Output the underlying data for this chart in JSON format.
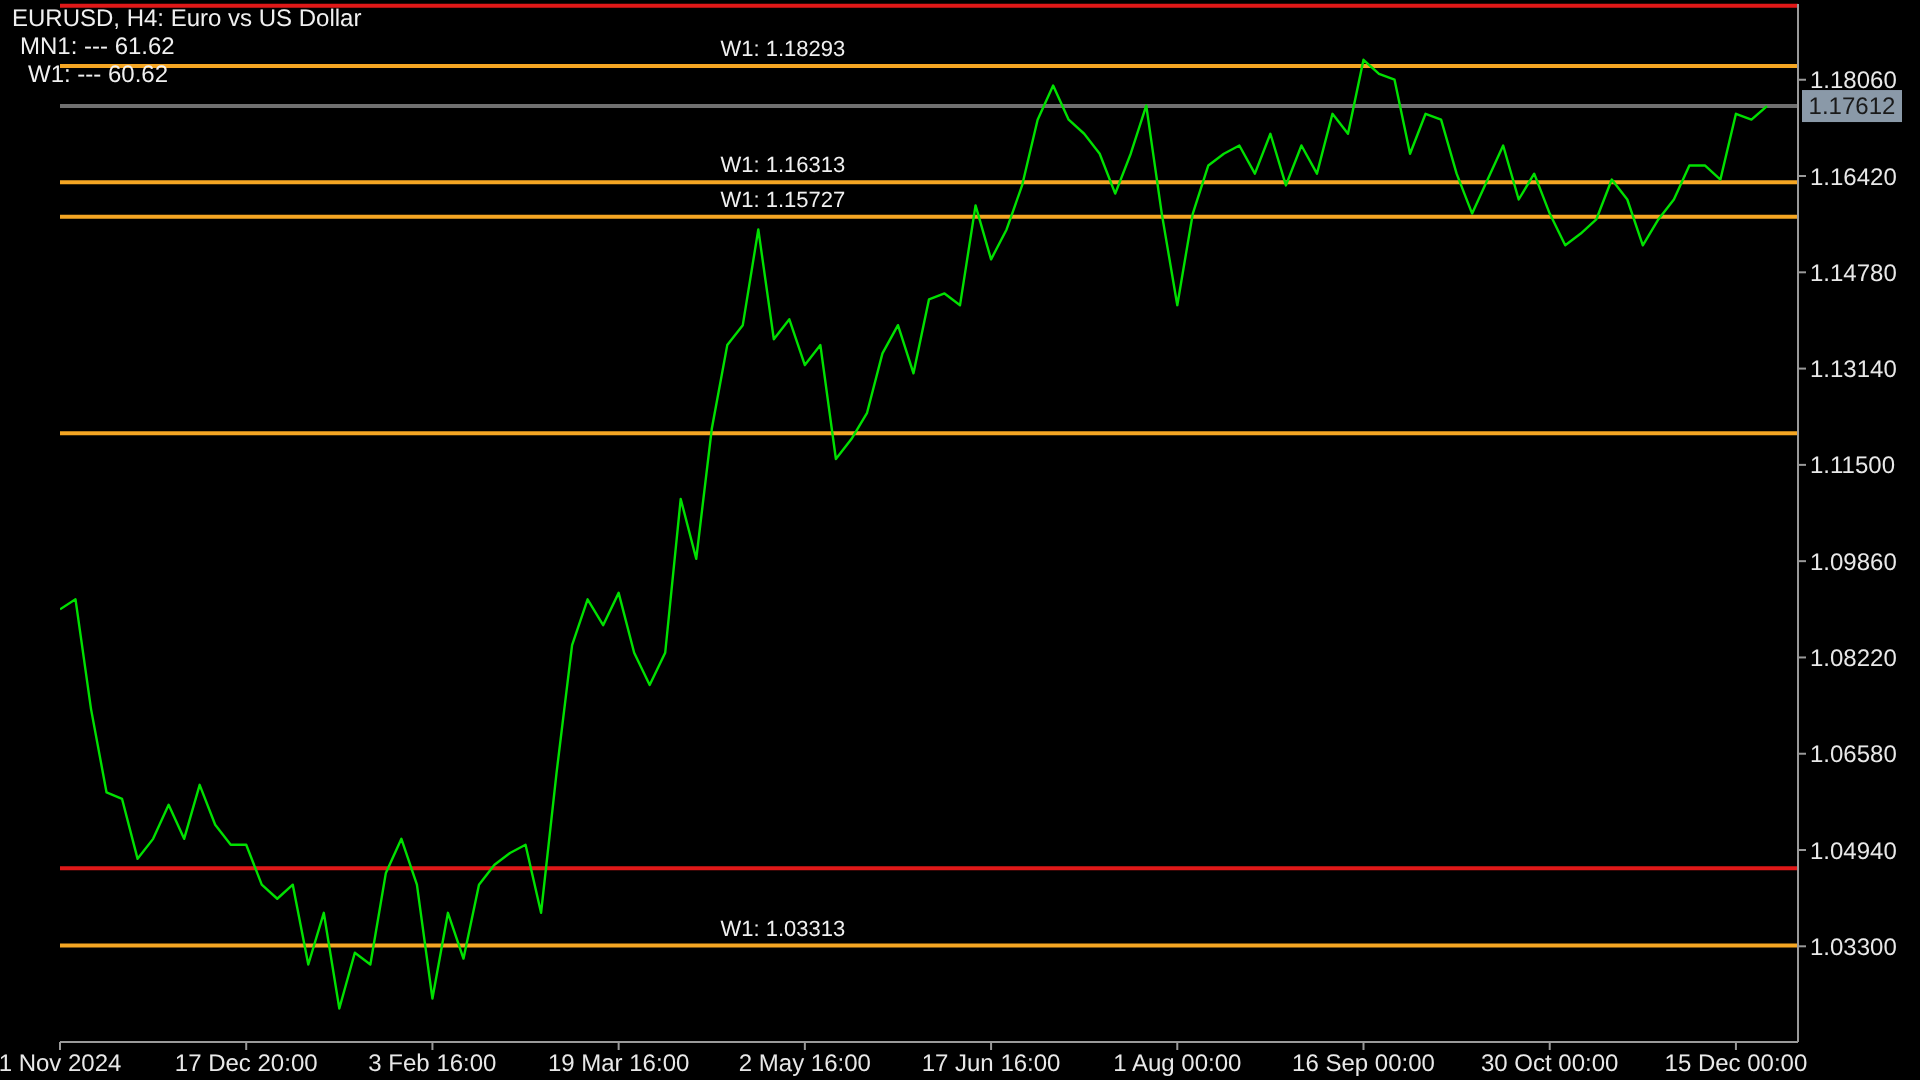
{
  "chart_data": {
    "type": "line",
    "title": "EURUSD, H4:  Euro vs US Dollar",
    "annotations": [
      "MN1: --- 61.62",
      "W1: --- 60.62"
    ],
    "categories": [
      "1 Nov 2024",
      null,
      null,
      null,
      null,
      null,
      null,
      null,
      null,
      null,
      null,
      null,
      "17 Dec 20:00",
      null,
      null,
      null,
      null,
      null,
      null,
      null,
      null,
      null,
      null,
      null,
      "3 Feb 16:00",
      null,
      null,
      null,
      null,
      null,
      null,
      null,
      null,
      null,
      null,
      null,
      "19 Mar 16:00",
      null,
      null,
      null,
      null,
      null,
      null,
      null,
      null,
      null,
      null,
      null,
      "2 May 16:00",
      null,
      null,
      null,
      null,
      null,
      null,
      null,
      null,
      null,
      null,
      null,
      "17 Jun 16:00",
      null,
      null,
      null,
      null,
      null,
      null,
      null,
      null,
      null,
      null,
      null,
      "1 Aug 00:00",
      null,
      null,
      null,
      null,
      null,
      null,
      null,
      null,
      null,
      null,
      null,
      "16 Sep 00:00",
      null,
      null,
      null,
      null,
      null,
      null,
      null,
      null,
      null,
      null,
      null,
      "30 Oct 00:00",
      null,
      null,
      null,
      null,
      null,
      null,
      null,
      null,
      null,
      null,
      null,
      "15 Dec 00:00",
      null,
      null,
      null,
      null
    ],
    "series": [
      {
        "color": "#00e000",
        "values": [
          1.0904,
          1.0921,
          1.0734,
          1.0592,
          1.0581,
          1.0479,
          1.0513,
          1.0571,
          1.0513,
          1.0605,
          1.0537,
          1.0503,
          1.0503,
          1.0435,
          1.0411,
          1.0435,
          1.0299,
          1.0387,
          1.0224,
          1.0319,
          1.0299,
          1.0455,
          1.0513,
          1.0435,
          1.0241,
          1.0387,
          1.0309,
          1.0435,
          1.0469,
          1.0489,
          1.0503,
          1.0387,
          1.0626,
          1.0843,
          1.0921,
          1.0877,
          1.0932,
          1.083,
          1.0775,
          1.083,
          1.1092,
          1.099,
          1.1211,
          1.1354,
          1.1388,
          1.1551,
          1.1364,
          1.1398,
          1.132,
          1.1354,
          1.116,
          1.1194,
          1.1238,
          1.134,
          1.1388,
          1.1306,
          1.1432,
          1.1442,
          1.1422,
          1.1592,
          1.15,
          1.1551,
          1.1626,
          1.1738,
          1.1796,
          1.1738,
          1.1714,
          1.168,
          1.1612,
          1.168,
          1.1762,
          1.1578,
          1.1422,
          1.1578,
          1.166,
          1.168,
          1.1694,
          1.1646,
          1.1714,
          1.1626,
          1.1694,
          1.1646,
          1.1748,
          1.1714,
          1.184,
          1.1816,
          1.1806,
          1.168,
          1.1748,
          1.1738,
          1.1646,
          1.1578,
          1.1636,
          1.1694,
          1.1602,
          1.1646,
          1.1578,
          1.1524,
          1.1544,
          1.1568,
          1.1636,
          1.1602,
          1.1524,
          1.1568,
          1.1602,
          1.166,
          1.166,
          1.1636,
          1.1748,
          1.1738,
          1.17612,
          null,
          null
        ],
        "value_labels": [
          null,
          null,
          null,
          null,
          null,
          null,
          null,
          null,
          null,
          null,
          null,
          null,
          null,
          null,
          null,
          null,
          null,
          null,
          null,
          null,
          null,
          null,
          null,
          null,
          null,
          null,
          null,
          null,
          null,
          null,
          null,
          null,
          null,
          null,
          null,
          null,
          null,
          null,
          null,
          null,
          null,
          null,
          null,
          null,
          null,
          null,
          null,
          null,
          null,
          null,
          null,
          null,
          null,
          null,
          null,
          null,
          null,
          null,
          null,
          null,
          null,
          null,
          null,
          null,
          null,
          null,
          null,
          null,
          null,
          null,
          null,
          null,
          null,
          null,
          null,
          null,
          null,
          null,
          null,
          null,
          null,
          null,
          null,
          null,
          null,
          null,
          null,
          null,
          null,
          null,
          null,
          null,
          null,
          null,
          null,
          null,
          null,
          null,
          null,
          null,
          null,
          null,
          null,
          null,
          null,
          null,
          null,
          null,
          null,
          null,
          "1.17612",
          null,
          null
        ]
      }
    ],
    "ylim": [
      1.0167,
      1.1935
    ],
    "yticks": [
      {
        "value": 1.033,
        "label": "1.03300"
      },
      {
        "value": 1.0494,
        "label": "1.04940"
      },
      {
        "value": 1.0658,
        "label": "1.06580"
      },
      {
        "value": 1.0822,
        "label": "1.08220"
      },
      {
        "value": 1.0986,
        "label": "1.09860"
      },
      {
        "value": 1.115,
        "label": "1.11500"
      },
      {
        "value": 1.1314,
        "label": "1.13140"
      },
      {
        "value": 1.1478,
        "label": "1.14780"
      },
      {
        "value": 1.1642,
        "label": "1.16420"
      },
      {
        "value": 1.1806,
        "label": "1.18060"
      }
    ],
    "ref_lines": [
      {
        "axis": "y",
        "value": 1.1932,
        "label": null,
        "color": "#e01818"
      },
      {
        "axis": "y",
        "value": 1.0463,
        "label": null,
        "color": "#e01818"
      },
      {
        "axis": "y",
        "value": 1.18293,
        "label": "W1: 1.18293",
        "color": "#f5a623"
      },
      {
        "axis": "y",
        "value": 1.17612,
        "label": null,
        "color": "#707070"
      },
      {
        "axis": "y",
        "value": 1.16313,
        "label": "W1: 1.16313",
        "color": "#f5a623"
      },
      {
        "axis": "y",
        "value": 1.15727,
        "label": "W1: 1.15727",
        "color": "#f5a623"
      },
      {
        "axis": "y",
        "value": 1.1204,
        "label": null,
        "color": "#f5a623"
      },
      {
        "axis": "y",
        "value": 1.03313,
        "label": "W1: 1.03313",
        "color": "#f5a623"
      }
    ],
    "grid": false,
    "legend": false,
    "marker": "none",
    "line_style": "solid"
  }
}
